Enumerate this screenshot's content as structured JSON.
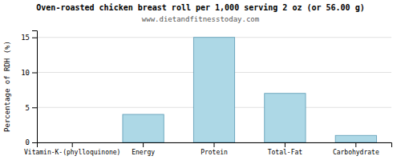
{
  "chart_data": {
    "type": "bar",
    "title": "Oven-roasted chicken breast roll per 1,000 serving 2 oz (or 56.00 g)",
    "subtitle": "www.dietandfitnesstoday.com",
    "categories": [
      "Vitamin-K-(phylloquinone)",
      "Energy",
      "Protein",
      "Total-Fat",
      "Carbohydrate"
    ],
    "values": [
      0,
      4,
      15,
      7,
      1
    ],
    "color": "#add8e6",
    "ylabel": "Percentage of RDH (%)",
    "ylim": [
      0,
      16
    ],
    "yticks": [
      0,
      5,
      10,
      15
    ],
    "grid": true
  }
}
